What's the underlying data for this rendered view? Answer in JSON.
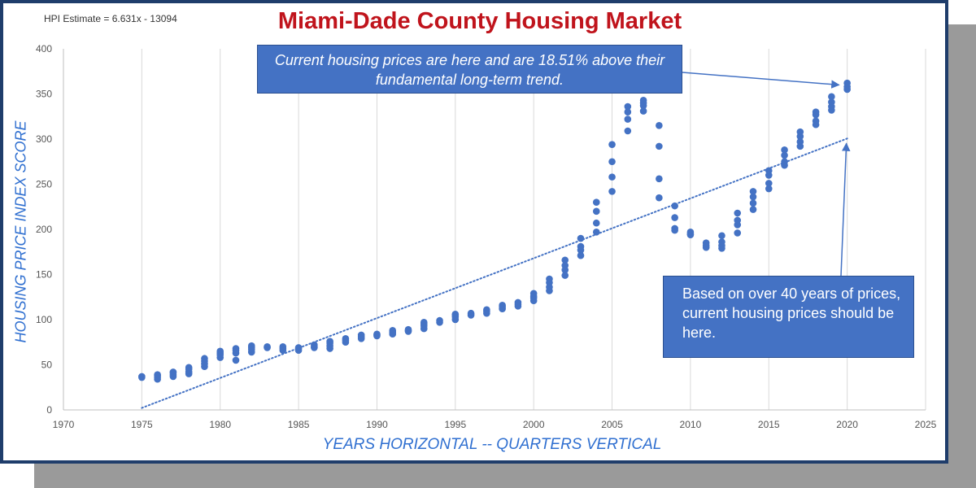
{
  "header": {
    "formula": "HPI Estimate = 6.631x - 13094",
    "title": "Miami-Dade County Housing Market"
  },
  "annotations": {
    "current": "Current housing prices are here and are 18.51% above their fundamental long-term trend.",
    "trend": "Based on over 40 years of prices, current housing prices should be here."
  },
  "colors": {
    "title": "#c0141c",
    "points": "#4472c4",
    "axis_label": "#2f6fd0",
    "frame": "#1f3d6b"
  },
  "chart_data": {
    "type": "scatter",
    "title": "Miami-Dade County Housing Market",
    "xlabel": "YEARS HORIZONTAL -- QUARTERS VERTICAL",
    "ylabel": "HOUSING PRICE INDEX SCORE",
    "xlim": [
      1970,
      2025
    ],
    "ylim": [
      0,
      400
    ],
    "x_ticks": [
      1970,
      1975,
      1980,
      1985,
      1990,
      1995,
      2000,
      2005,
      2010,
      2015,
      2020,
      2025
    ],
    "y_ticks": [
      0,
      50,
      100,
      150,
      200,
      250,
      300,
      350,
      400
    ],
    "grid": "vertical",
    "trendline": {
      "type": "linear",
      "equation": "HPI Estimate = 6.631x - 13094",
      "slope": 6.631,
      "intercept": -13094,
      "x_range": [
        1975,
        2020
      ],
      "style": "dotted"
    },
    "series": [
      {
        "points": [
          [
            1975,
            36
          ],
          [
            1975,
            37
          ],
          [
            1976,
            34
          ],
          [
            1976,
            36
          ],
          [
            1976,
            38
          ],
          [
            1976,
            39
          ],
          [
            1977,
            37
          ],
          [
            1977,
            39
          ],
          [
            1977,
            41
          ],
          [
            1977,
            42
          ],
          [
            1978,
            40
          ],
          [
            1978,
            42
          ],
          [
            1978,
            45
          ],
          [
            1978,
            47
          ],
          [
            1979,
            48
          ],
          [
            1979,
            51
          ],
          [
            1979,
            54
          ],
          [
            1979,
            57
          ],
          [
            1980,
            58
          ],
          [
            1980,
            61
          ],
          [
            1980,
            63
          ],
          [
            1980,
            65
          ],
          [
            1981,
            55
          ],
          [
            1981,
            63
          ],
          [
            1981,
            66
          ],
          [
            1981,
            68
          ],
          [
            1982,
            64
          ],
          [
            1982,
            67
          ],
          [
            1982,
            69
          ],
          [
            1982,
            71
          ],
          [
            1983,
            69
          ],
          [
            1983,
            70
          ],
          [
            1984,
            66
          ],
          [
            1984,
            68
          ],
          [
            1984,
            70
          ],
          [
            1985,
            66
          ],
          [
            1985,
            68
          ],
          [
            1985,
            69
          ],
          [
            1986,
            69
          ],
          [
            1986,
            70
          ],
          [
            1986,
            72
          ],
          [
            1987,
            68
          ],
          [
            1987,
            71
          ],
          [
            1987,
            74
          ],
          [
            1987,
            76
          ],
          [
            1988,
            75
          ],
          [
            1988,
            77
          ],
          [
            1988,
            79
          ],
          [
            1989,
            79
          ],
          [
            1989,
            81
          ],
          [
            1989,
            83
          ],
          [
            1990,
            82
          ],
          [
            1990,
            83
          ],
          [
            1990,
            84
          ],
          [
            1991,
            84
          ],
          [
            1991,
            86
          ],
          [
            1991,
            88
          ],
          [
            1992,
            87
          ],
          [
            1992,
            88
          ],
          [
            1992,
            89
          ],
          [
            1993,
            90
          ],
          [
            1993,
            93
          ],
          [
            1993,
            95
          ],
          [
            1993,
            97
          ],
          [
            1994,
            97
          ],
          [
            1994,
            99
          ],
          [
            1995,
            100
          ],
          [
            1995,
            103
          ],
          [
            1995,
            105
          ],
          [
            1995,
            106
          ],
          [
            1996,
            105
          ],
          [
            1996,
            107
          ],
          [
            1997,
            107
          ],
          [
            1997,
            109
          ],
          [
            1997,
            111
          ],
          [
            1998,
            112
          ],
          [
            1998,
            114
          ],
          [
            1998,
            116
          ],
          [
            1999,
            115
          ],
          [
            1999,
            117
          ],
          [
            1999,
            119
          ],
          [
            2000,
            121
          ],
          [
            2000,
            124
          ],
          [
            2000,
            126
          ],
          [
            2000,
            129
          ],
          [
            2001,
            132
          ],
          [
            2001,
            136
          ],
          [
            2001,
            141
          ],
          [
            2001,
            145
          ],
          [
            2002,
            149
          ],
          [
            2002,
            155
          ],
          [
            2002,
            160
          ],
          [
            2002,
            166
          ],
          [
            2003,
            171
          ],
          [
            2003,
            177
          ],
          [
            2003,
            181
          ],
          [
            2003,
            190
          ],
          [
            2004,
            197
          ],
          [
            2004,
            207
          ],
          [
            2004,
            220
          ],
          [
            2004,
            230
          ],
          [
            2005,
            242
          ],
          [
            2005,
            258
          ],
          [
            2005,
            275
          ],
          [
            2005,
            294
          ],
          [
            2006,
            309
          ],
          [
            2006,
            322
          ],
          [
            2006,
            330
          ],
          [
            2006,
            336
          ],
          [
            2007,
            331
          ],
          [
            2007,
            337
          ],
          [
            2007,
            340
          ],
          [
            2007,
            343
          ],
          [
            2008,
            315
          ],
          [
            2008,
            292
          ],
          [
            2008,
            256
          ],
          [
            2008,
            235
          ],
          [
            2009,
            226
          ],
          [
            2009,
            213
          ],
          [
            2009,
            201
          ],
          [
            2009,
            199
          ],
          [
            2010,
            197
          ],
          [
            2010,
            195
          ],
          [
            2010,
            194
          ],
          [
            2011,
            185
          ],
          [
            2011,
            182
          ],
          [
            2011,
            180
          ],
          [
            2012,
            193
          ],
          [
            2012,
            186
          ],
          [
            2012,
            182
          ],
          [
            2012,
            179
          ],
          [
            2013,
            196
          ],
          [
            2013,
            205
          ],
          [
            2013,
            210
          ],
          [
            2013,
            218
          ],
          [
            2014,
            222
          ],
          [
            2014,
            229
          ],
          [
            2014,
            236
          ],
          [
            2014,
            242
          ],
          [
            2015,
            245
          ],
          [
            2015,
            251
          ],
          [
            2015,
            260
          ],
          [
            2015,
            265
          ],
          [
            2016,
            271
          ],
          [
            2016,
            275
          ],
          [
            2016,
            282
          ],
          [
            2016,
            288
          ],
          [
            2017,
            292
          ],
          [
            2017,
            297
          ],
          [
            2017,
            303
          ],
          [
            2017,
            308
          ],
          [
            2018,
            316
          ],
          [
            2018,
            320
          ],
          [
            2018,
            327
          ],
          [
            2018,
            330
          ],
          [
            2019,
            332
          ],
          [
            2019,
            336
          ],
          [
            2019,
            341
          ],
          [
            2019,
            347
          ],
          [
            2020,
            355
          ],
          [
            2020,
            358
          ],
          [
            2020,
            362
          ]
        ]
      }
    ]
  }
}
